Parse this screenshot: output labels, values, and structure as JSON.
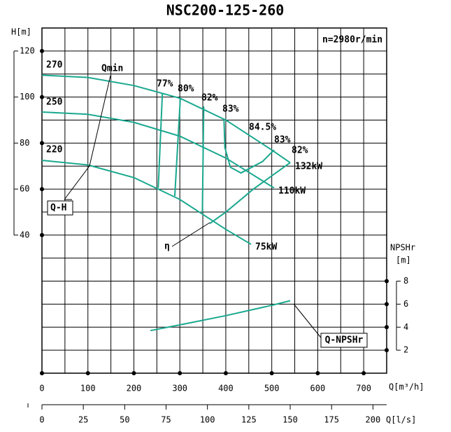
{
  "chart_data": {
    "type": "line",
    "title": "NSC200-125-260",
    "speed": "n=2980r/min",
    "y_label": "H[m]",
    "y2_label": [
      "NPSHr",
      "[m]"
    ],
    "x_label": "Q[m³/h]",
    "x2_label": "Q[l/s]",
    "color": "#1aa88f",
    "xlim": [
      0,
      750
    ],
    "xticks": [
      0,
      100,
      200,
      300,
      400,
      500,
      600,
      700
    ],
    "x2lim": [
      0,
      208.3
    ],
    "x2ticks": [
      0,
      25,
      50,
      75,
      100,
      125,
      150,
      175,
      200
    ],
    "ylim": [
      -20,
      130
    ],
    "yticks": [
      40,
      60,
      80,
      100,
      120
    ],
    "y2lim": [
      0,
      30
    ],
    "y2ticks": [
      2,
      4,
      6,
      8
    ],
    "grid": true,
    "series": [
      {
        "name": "270",
        "x": [
          0,
          100,
          200,
          300,
          400,
          500,
          540
        ],
        "values": [
          109.5,
          108.5,
          105,
          99.5,
          90,
          77,
          71.5
        ]
      },
      {
        "name": "250",
        "x": [
          0,
          100,
          200,
          300,
          400,
          505
        ],
        "values": [
          93.5,
          92.5,
          89,
          83,
          73.5,
          60.5
        ]
      },
      {
        "name": "220",
        "x": [
          0,
          100,
          200,
          300,
          400,
          455
        ],
        "values": [
          72.5,
          70.5,
          65,
          55.5,
          42.5,
          36
        ]
      },
      {
        "name": "77%",
        "x": [
          262,
          253
        ],
        "values": [
          101.5,
          60.5
        ]
      },
      {
        "name": "80%",
        "x": [
          301,
          289
        ],
        "values": [
          99.3,
          57
        ]
      },
      {
        "name": "82%",
        "x": [
          352,
          349
        ],
        "values": [
          95.9,
          50
        ]
      },
      {
        "name": "83%",
        "x": [
          396,
          398,
          410,
          433,
          480,
          505
        ],
        "values": [
          90.4,
          78,
          69.5,
          67,
          72,
          77
        ]
      },
      {
        "name": "84.5%",
        "x": [
          365,
          400,
          460,
          540
        ],
        "values": [
          45,
          50,
          60,
          71.5
        ]
      },
      {
        "name": "Q-NPSHr",
        "axis": "y2",
        "x": [
          236,
          300,
          400,
          500,
          540
        ],
        "values": [
          3.7,
          4.2,
          5.0,
          5.9,
          6.3
        ]
      }
    ],
    "annotations": [
      "Qmin",
      "Q-H",
      "η",
      "83%",
      "82%",
      "132kW",
      "110kW",
      "75kW"
    ]
  }
}
